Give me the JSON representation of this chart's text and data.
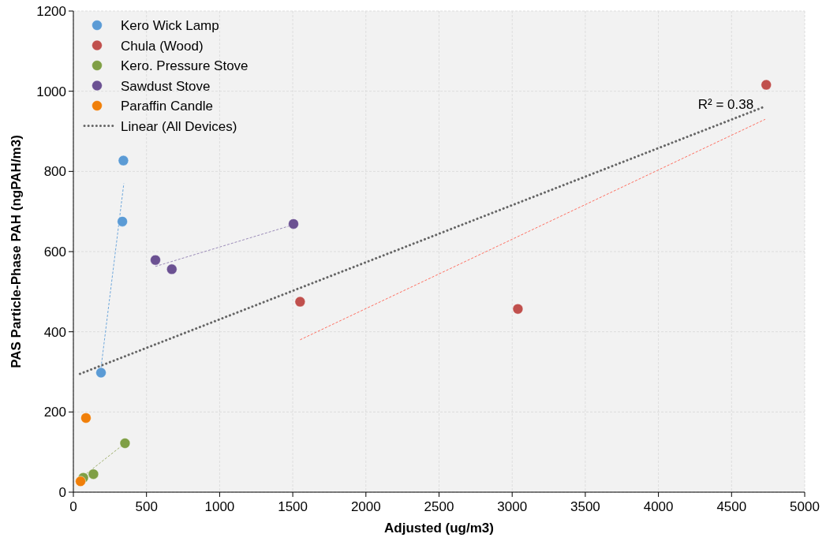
{
  "chart_data": {
    "type": "scatter",
    "xlabel": "Adjusted (ug/m3)",
    "ylabel": "PAS Particle-Phase PAH (ngPAH/m3)",
    "xlim": [
      0,
      5000
    ],
    "ylim": [
      0,
      1200
    ],
    "xticks": [
      0,
      500,
      1000,
      1500,
      2000,
      2500,
      3000,
      3500,
      4000,
      4500,
      5000
    ],
    "yticks": [
      0,
      200,
      400,
      600,
      800,
      1000,
      1200
    ],
    "grid": true,
    "legend": "top left",
    "marker": "circle",
    "annotations": [
      {
        "text": "R² = 0.38",
        "x": 4715,
        "y": 960
      }
    ],
    "series": [
      {
        "name": "Kero Wick Lamp",
        "color": "#5b9bd5",
        "x": [
          342,
          335,
          189
        ],
        "values": [
          827,
          675,
          298
        ]
      },
      {
        "name": "Chula (Wood)",
        "color": "#c0504d",
        "x": [
          1550,
          3039,
          4737
        ],
        "values": [
          475,
          457,
          1016
        ]
      },
      {
        "name": "Kero. Pressure Stove",
        "color": "#7f9f45",
        "x": [
          353,
          137,
          68
        ],
        "values": [
          122,
          45,
          36
        ]
      },
      {
        "name": "Sawdust Stove",
        "color": "#6b5192",
        "x": [
          561,
          673,
          1505
        ],
        "values": [
          579,
          556,
          669
        ]
      },
      {
        "name": "Paraffin Candle",
        "color": "#f07f09",
        "x": [
          86,
          49
        ],
        "values": [
          185,
          27
        ]
      },
      {
        "name": "Linear (All Devices)",
        "type": "line",
        "marker": "none",
        "line_style": "dotted",
        "color": "#666666",
        "x": [
          45,
          4715
        ],
        "values": [
          295,
          960
        ]
      },
      {
        "type": "line",
        "marker": "none",
        "line_style": "dashed",
        "color": "#6fa8dc",
        "x": [
          189,
          345
        ],
        "values": [
          310,
          770
        ]
      },
      {
        "type": "line",
        "marker": "none",
        "line_style": "dashed",
        "color": "#ff6f61",
        "x": [
          1550,
          4730
        ],
        "values": [
          380,
          930
        ]
      },
      {
        "type": "line",
        "marker": "none",
        "line_style": "dashed",
        "color": "#9a8ab8",
        "x": [
          561,
          1505
        ],
        "values": [
          563,
          667
        ]
      },
      {
        "type": "line",
        "marker": "none",
        "line_style": "dashed",
        "color": "#a0b070",
        "x": [
          68,
          353
        ],
        "values": [
          40,
          122
        ]
      }
    ]
  }
}
